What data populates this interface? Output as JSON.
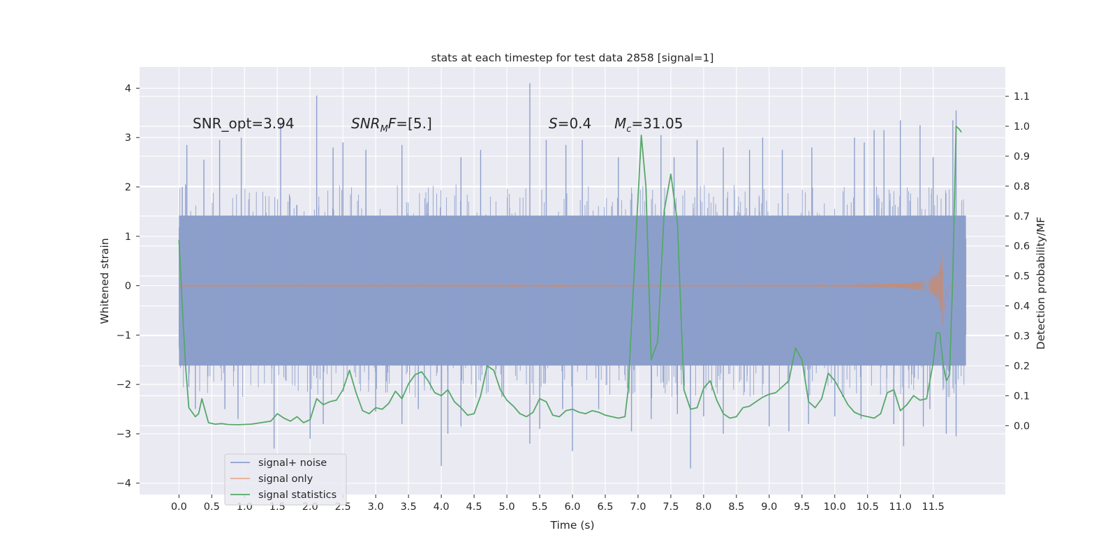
{
  "chart_data": {
    "type": "line",
    "title": "stats at each timestep for test data 2858 [signal=1]",
    "xlabel": "Time (s)",
    "ylabel_left": "Whitened strain",
    "ylabel_right": "Detection probability/MF",
    "xlim": [
      -0.6,
      12.6
    ],
    "ylim_left": [
      -4.23,
      4.43
    ],
    "ylim_right": [
      -0.23,
      1.198
    ],
    "grid": true,
    "legend_position": "lower-left",
    "x_ticks": [
      "0.0",
      "0.5",
      "1.0",
      "1.5",
      "2.0",
      "2.5",
      "3.0",
      "3.5",
      "4.0",
      "4.5",
      "5.0",
      "5.5",
      "6.0",
      "6.5",
      "7.0",
      "7.5",
      "8.0",
      "8.5",
      "9.0",
      "9.5",
      "10.0",
      "10.5",
      "11.0",
      "11.5"
    ],
    "y_ticks_left": [
      "−4",
      "−3",
      "−2",
      "−1",
      "0",
      "1",
      "2",
      "3",
      "4"
    ],
    "y_ticks_right": [
      "0.0",
      "0.1",
      "0.2",
      "0.3",
      "0.4",
      "0.5",
      "0.6",
      "0.7",
      "0.8",
      "0.9",
      "1.0",
      "1.1"
    ],
    "annotations": [
      {
        "text": "SNR_opt=3.94",
        "x": 0.2,
        "y": 3.35
      },
      {
        "text": "SNR_MF=[5.]",
        "x": 2.6,
        "y": 3.35
      },
      {
        "text": "S=0.4",
        "x": 5.6,
        "y": 3.35
      },
      {
        "text": "M_c=31.05",
        "x": 6.6,
        "y": 3.35
      }
    ],
    "series": [
      {
        "name": "signal+ noise",
        "axis": "left",
        "color": "#8c9fcb",
        "t_start": 0.0,
        "t_end": 12.0,
        "band_upper": 1.42,
        "band_lower": -1.62,
        "peaks_upper": [
          [
            0.05,
            2.0
          ],
          [
            0.1,
            2.05
          ],
          [
            0.12,
            2.85
          ],
          [
            0.38,
            2.55
          ],
          [
            0.62,
            2.95
          ],
          [
            0.95,
            3.0
          ],
          [
            1.55,
            3.3
          ],
          [
            2.1,
            3.85
          ],
          [
            2.35,
            2.8
          ],
          [
            2.5,
            2.9
          ],
          [
            2.85,
            2.75
          ],
          [
            3.4,
            2.85
          ],
          [
            4.3,
            2.6
          ],
          [
            4.6,
            2.75
          ],
          [
            5.35,
            4.1
          ],
          [
            5.9,
            2.85
          ],
          [
            5.6,
            2.95
          ],
          [
            6.15,
            2.95
          ],
          [
            6.7,
            2.6
          ],
          [
            7.35,
            3.05
          ],
          [
            7.55,
            2.6
          ],
          [
            7.9,
            2.95
          ],
          [
            8.3,
            2.8
          ],
          [
            8.7,
            2.75
          ],
          [
            8.9,
            3.0
          ],
          [
            9.2,
            2.75
          ],
          [
            9.65,
            2.8
          ],
          [
            10.3,
            3.0
          ],
          [
            10.45,
            2.9
          ],
          [
            10.6,
            3.15
          ],
          [
            10.75,
            3.15
          ],
          [
            11.0,
            3.35
          ],
          [
            11.3,
            3.25
          ],
          [
            11.5,
            2.6
          ],
          [
            11.8,
            3.35
          ],
          [
            11.85,
            3.55
          ]
        ],
        "peaks_lower": [
          [
            0.15,
            -2.05
          ],
          [
            0.25,
            -2.5
          ],
          [
            0.7,
            -2.5
          ],
          [
            0.9,
            -2.7
          ],
          [
            1.45,
            -3.3
          ],
          [
            2.0,
            -3.1
          ],
          [
            2.2,
            -2.8
          ],
          [
            3.0,
            -2.55
          ],
          [
            3.4,
            -2.8
          ],
          [
            3.65,
            -2.5
          ],
          [
            4.0,
            -3.65
          ],
          [
            4.1,
            -3.0
          ],
          [
            4.3,
            -2.85
          ],
          [
            5.35,
            -3.2
          ],
          [
            5.5,
            -2.9
          ],
          [
            5.85,
            -2.5
          ],
          [
            6.0,
            -3.35
          ],
          [
            6.4,
            -2.5
          ],
          [
            6.9,
            -2.95
          ],
          [
            7.2,
            -2.7
          ],
          [
            7.6,
            -2.6
          ],
          [
            7.8,
            -3.7
          ],
          [
            8.0,
            -2.65
          ],
          [
            8.3,
            -3.0
          ],
          [
            9.0,
            -2.85
          ],
          [
            9.3,
            -2.95
          ],
          [
            9.6,
            -2.8
          ],
          [
            10.0,
            -2.65
          ],
          [
            10.4,
            -2.7
          ],
          [
            10.9,
            -2.8
          ],
          [
            11.05,
            -3.25
          ],
          [
            11.35,
            -2.85
          ],
          [
            11.45,
            -2.5
          ],
          [
            11.7,
            -3.0
          ],
          [
            11.85,
            -3.05
          ]
        ]
      },
      {
        "name": "signal only",
        "axis": "left",
        "color": "#dd8452",
        "t_start": 0.0,
        "t_end": 12.0,
        "chirp_peak_time": 11.65,
        "chirp_peak_amplitude": 0.9
      },
      {
        "name": "signal statistics",
        "axis": "right",
        "color": "#55a868",
        "t": [
          0.0,
          0.05,
          0.1,
          0.15,
          0.25,
          0.3,
          0.35,
          0.45,
          0.55,
          0.65,
          0.75,
          0.9,
          1.1,
          1.25,
          1.4,
          1.5,
          1.6,
          1.7,
          1.8,
          1.9,
          2.0,
          2.1,
          2.2,
          2.3,
          2.4,
          2.5,
          2.6,
          2.7,
          2.8,
          2.9,
          3.0,
          3.1,
          3.2,
          3.3,
          3.4,
          3.5,
          3.6,
          3.7,
          3.8,
          3.9,
          4.0,
          4.1,
          4.2,
          4.3,
          4.4,
          4.5,
          4.6,
          4.7,
          4.8,
          4.9,
          5.0,
          5.1,
          5.2,
          5.3,
          5.4,
          5.5,
          5.6,
          5.7,
          5.8,
          5.9,
          6.0,
          6.1,
          6.2,
          6.3,
          6.4,
          6.5,
          6.6,
          6.7,
          6.8,
          6.85,
          6.95,
          7.05,
          7.12,
          7.2,
          7.3,
          7.4,
          7.5,
          7.6,
          7.7,
          7.8,
          7.9,
          8.0,
          8.1,
          8.2,
          8.3,
          8.4,
          8.5,
          8.6,
          8.7,
          8.8,
          8.9,
          9.0,
          9.1,
          9.2,
          9.3,
          9.4,
          9.5,
          9.6,
          9.7,
          9.8,
          9.9,
          10.0,
          10.1,
          10.2,
          10.3,
          10.4,
          10.5,
          10.6,
          10.7,
          10.8,
          10.9,
          11.0,
          11.1,
          11.2,
          11.3,
          11.4,
          11.5,
          11.55,
          11.6,
          11.65,
          11.7,
          11.75,
          11.8,
          11.85,
          11.9,
          11.93
        ],
        "values": [
          0.62,
          0.4,
          0.2,
          0.06,
          0.03,
          0.04,
          0.09,
          0.01,
          0.005,
          0.007,
          0.004,
          0.003,
          0.005,
          0.01,
          0.015,
          0.04,
          0.025,
          0.015,
          0.03,
          0.01,
          0.02,
          0.09,
          0.07,
          0.08,
          0.085,
          0.12,
          0.185,
          0.11,
          0.05,
          0.04,
          0.06,
          0.055,
          0.075,
          0.115,
          0.09,
          0.14,
          0.17,
          0.18,
          0.15,
          0.11,
          0.1,
          0.12,
          0.08,
          0.06,
          0.035,
          0.04,
          0.1,
          0.2,
          0.185,
          0.12,
          0.085,
          0.065,
          0.04,
          0.03,
          0.045,
          0.09,
          0.08,
          0.035,
          0.03,
          0.05,
          0.055,
          0.045,
          0.04,
          0.05,
          0.045,
          0.035,
          0.03,
          0.025,
          0.03,
          0.12,
          0.55,
          0.97,
          0.8,
          0.22,
          0.28,
          0.72,
          0.84,
          0.68,
          0.12,
          0.055,
          0.06,
          0.125,
          0.15,
          0.085,
          0.04,
          0.025,
          0.03,
          0.06,
          0.065,
          0.08,
          0.095,
          0.105,
          0.11,
          0.13,
          0.15,
          0.26,
          0.22,
          0.08,
          0.06,
          0.09,
          0.175,
          0.15,
          0.11,
          0.07,
          0.045,
          0.035,
          0.03,
          0.025,
          0.04,
          0.11,
          0.12,
          0.05,
          0.07,
          0.1,
          0.085,
          0.09,
          0.21,
          0.31,
          0.31,
          0.21,
          0.15,
          0.17,
          0.5,
          1.0,
          0.99,
          0.98
        ]
      }
    ]
  },
  "text": {
    "title": "stats at each timestep for test data 2858 [signal=1]",
    "xlabel": "Time (s)",
    "ylabel_left": "Whitened strain",
    "ylabel_right": "Detection probability/MF",
    "legend_1": "signal+ noise",
    "legend_2": "signal only",
    "legend_3": "signal statistics"
  }
}
